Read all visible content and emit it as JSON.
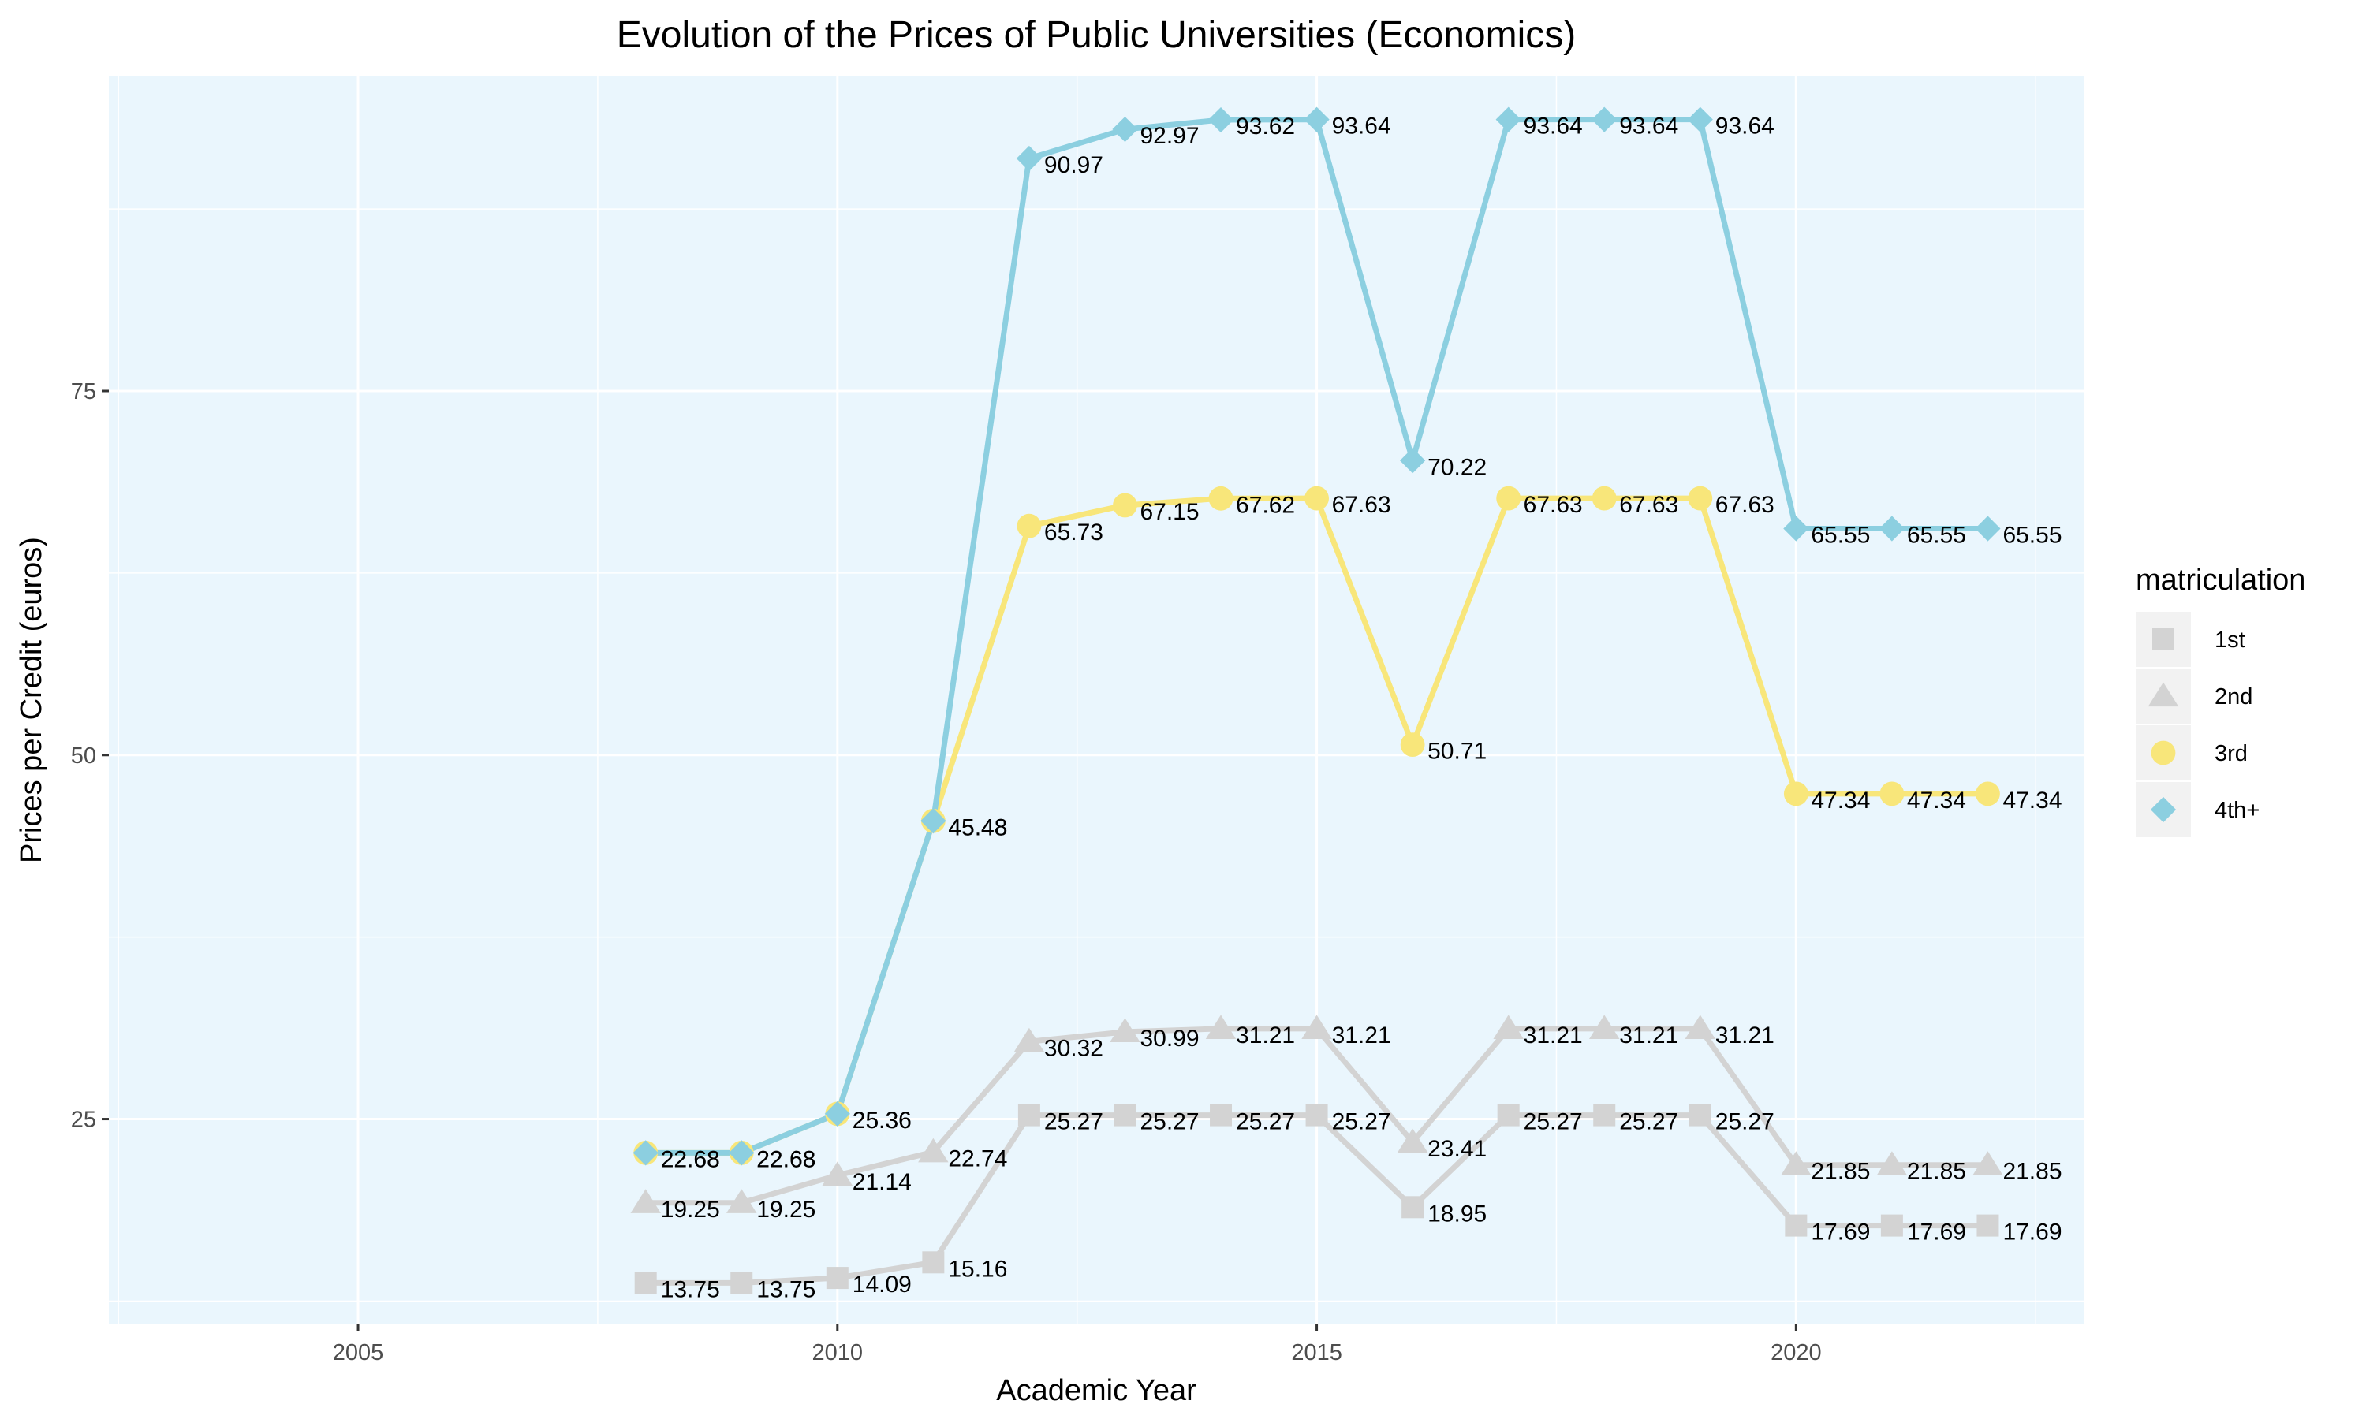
{
  "chart_data": {
    "type": "line",
    "title": "Evolution of the Prices of Public Universities (Economics)",
    "xlabel": "Academic Year",
    "ylabel": "Prices per Credit (euros)",
    "xlim": [
      2002.4,
      2023.0
    ],
    "ylim": [
      10.9,
      96.6
    ],
    "x_ticks": [
      2005,
      2010,
      2015,
      2020
    ],
    "y_ticks": [
      25,
      50,
      75
    ],
    "x": [
      2008,
      2009,
      2010,
      2011,
      2012,
      2013,
      2014,
      2015,
      2016,
      2017,
      2018,
      2019,
      2020,
      2021,
      2022
    ],
    "legend_title": "matriculation",
    "legend_position": "right",
    "series": [
      {
        "name": "1st",
        "marker": "square",
        "color": "#d3d3d3",
        "values": [
          13.75,
          13.75,
          14.09,
          15.16,
          25.27,
          25.27,
          25.27,
          25.27,
          18.95,
          25.27,
          25.27,
          25.27,
          17.69,
          17.69,
          17.69
        ],
        "labels": [
          "13.75",
          "13.75",
          "14.09",
          "15.16",
          "25.27",
          "25.27",
          "25.27",
          "25.27",
          "18.95",
          "25.27",
          "25.27",
          "25.27",
          "17.69",
          "17.69",
          "17.69"
        ]
      },
      {
        "name": "2nd",
        "marker": "triangle",
        "color": "#d3d3d3",
        "values": [
          19.25,
          19.25,
          21.14,
          22.74,
          30.32,
          30.99,
          31.21,
          31.21,
          23.41,
          31.21,
          31.21,
          31.21,
          21.85,
          21.85,
          21.85
        ],
        "labels": [
          "19.25",
          "19.25",
          "21.14",
          "22.74",
          "30.32",
          "30.99",
          "31.21",
          "31.21",
          "23.41",
          "31.21",
          "31.21",
          "31.21",
          "21.85",
          "21.85",
          "21.85"
        ]
      },
      {
        "name": "3rd",
        "marker": "circle",
        "color": "#f8e67a",
        "values": [
          22.68,
          22.68,
          25.36,
          45.48,
          65.73,
          67.15,
          67.62,
          67.63,
          50.71,
          67.63,
          67.63,
          67.63,
          47.34,
          47.34,
          47.34
        ],
        "labels": [
          "22.68",
          "22.68",
          "25.36",
          "45.48",
          "65.73",
          "67.15",
          "67.62",
          "67.63",
          "50.71",
          "67.63",
          "67.63",
          "67.63",
          "47.34",
          "47.34",
          "47.34"
        ]
      },
      {
        "name": "4th+",
        "marker": "diamond",
        "color": "#8ccfe0",
        "values": [
          22.68,
          22.68,
          25.36,
          45.48,
          90.97,
          92.97,
          93.62,
          93.64,
          70.22,
          93.64,
          93.64,
          93.64,
          65.55,
          65.55,
          65.55
        ],
        "labels": [
          "22.68",
          "22.68",
          "25.36",
          "45.48",
          "90.97",
          "92.97",
          "93.62",
          "93.64",
          "70.22",
          "93.64",
          "93.64",
          "93.64",
          "65.55",
          "65.55",
          "65.55"
        ]
      }
    ]
  },
  "colors": {
    "panel_background": "#eaf6fd",
    "grid": "#ffffff",
    "legend_key_background": "#f2f2f2"
  }
}
